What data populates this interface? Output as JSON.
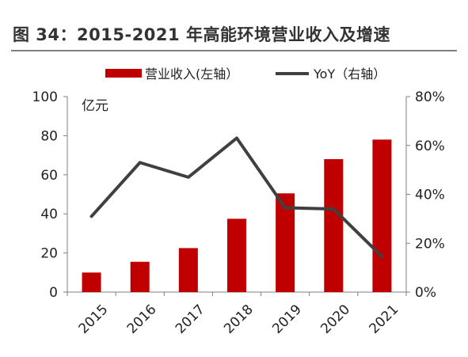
{
  "figure": {
    "title": "图 34：2015-2021 年高能环境营业收入及增速"
  },
  "chart_data": {
    "type": "bar+line",
    "categories": [
      "2015",
      "2016",
      "2017",
      "2018",
      "2019",
      "2020",
      "2021"
    ],
    "series": [
      {
        "name": "营业收入(左轴）",
        "type": "bar",
        "axis": "left",
        "color": "#c00000",
        "values": [
          10,
          15.5,
          22.5,
          37.5,
          50.5,
          68,
          78
        ]
      },
      {
        "name": "YoY（右轴）",
        "type": "line",
        "axis": "right",
        "color": "#404040",
        "values": [
          31,
          53,
          47,
          63,
          34.5,
          34,
          14.5
        ]
      }
    ],
    "y_left": {
      "unit_label": "亿元",
      "ylim": [
        0,
        100
      ],
      "ticks": [
        "0",
        "20",
        "40",
        "60",
        "80",
        "100"
      ],
      "tick_values": [
        0,
        20,
        40,
        60,
        80,
        100
      ]
    },
    "y_right": {
      "ylim": [
        0,
        80
      ],
      "ticks": [
        "0%",
        "20%",
        "40%",
        "60%",
        "80%"
      ],
      "tick_values": [
        0,
        20,
        40,
        60,
        80
      ]
    },
    "legend_position": "top",
    "grid": false
  }
}
